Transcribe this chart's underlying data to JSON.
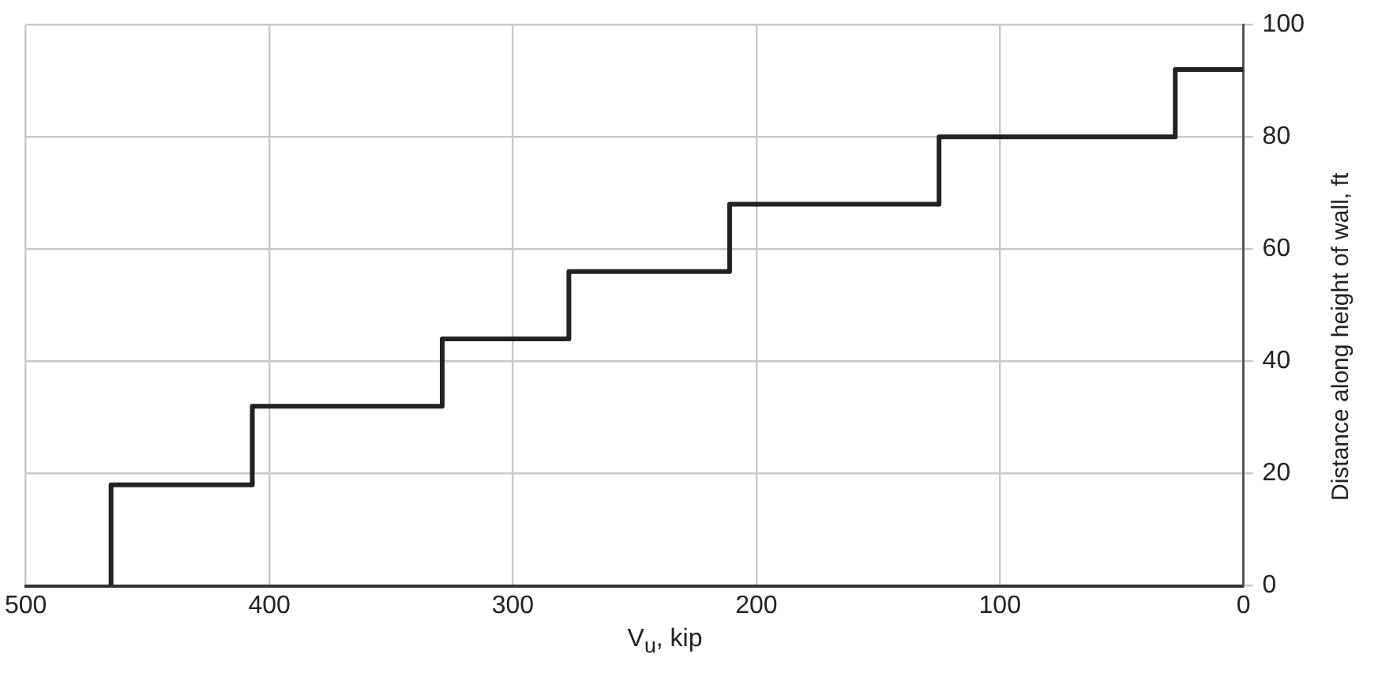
{
  "chart_data": {
    "type": "step",
    "xlabel": "V$_{u}$, kip",
    "ylabel": "Distance along height of wall, ft",
    "x": [
      465,
      407,
      329,
      277,
      211,
      125,
      28,
      0
    ],
    "values": [
      0,
      18,
      32,
      44,
      56,
      68,
      80,
      92
    ],
    "color": "#222222",
    "xlim": [
      500,
      0
    ],
    "xticks": [
      500,
      400,
      300,
      200,
      100,
      0
    ],
    "ylim": [
      0,
      100
    ],
    "yticks": [
      0,
      20,
      40,
      60,
      80,
      100
    ],
    "grid": true,
    "legend": false,
    "marker": "none",
    "line_style": "solid"
  }
}
